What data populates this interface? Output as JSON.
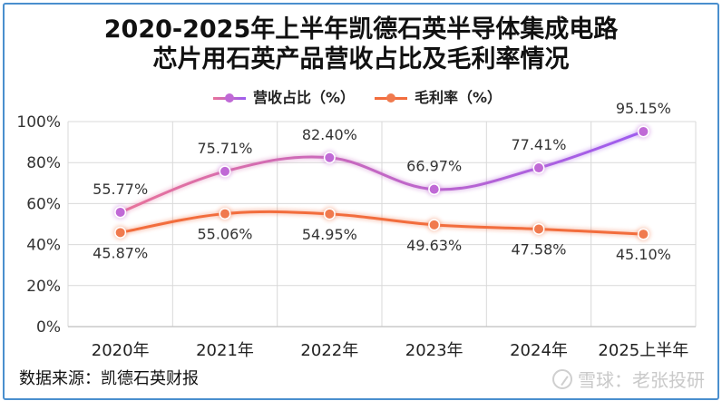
{
  "chart_data": {
    "type": "line",
    "title_line1": "2020-2025年上半年凯德石英半导体集成电路",
    "title_line2": "芯片用石英产品营收占比及毛利率情况",
    "categories": [
      "2020年",
      "2021年",
      "2022年",
      "2023年",
      "2024年",
      "2025上半年"
    ],
    "ylim": [
      0,
      100
    ],
    "yticks": [
      "0%",
      "20%",
      "40%",
      "60%",
      "80%",
      "100%"
    ],
    "ytick_values": [
      0,
      20,
      40,
      60,
      80,
      100
    ],
    "grid": true,
    "legend_position": "top-center",
    "series": [
      {
        "name": "营收占比（%）",
        "values": [
          55.77,
          75.71,
          82.4,
          66.97,
          77.41,
          95.15
        ],
        "labels": [
          "55.77%",
          "75.71%",
          "82.40%",
          "66.97%",
          "77.41%",
          "95.15%"
        ],
        "color_start": "#e8729a",
        "color_end": "#9d5cf0",
        "marker_color": "#c069d6",
        "label_position": "above"
      },
      {
        "name": "毛利率（%）",
        "values": [
          45.87,
          55.06,
          54.95,
          49.63,
          47.58,
          45.1
        ],
        "labels": [
          "45.87%",
          "55.06%",
          "54.95%",
          "49.63%",
          "47.58%",
          "45.10%"
        ],
        "color_start": "#f26d3d",
        "color_end": "#f26d3d",
        "marker_color": "#f07a4e",
        "label_position": "below"
      }
    ]
  },
  "footer": {
    "source": "数据来源：凯德石英财报",
    "watermark": "雪球：老张投研"
  }
}
